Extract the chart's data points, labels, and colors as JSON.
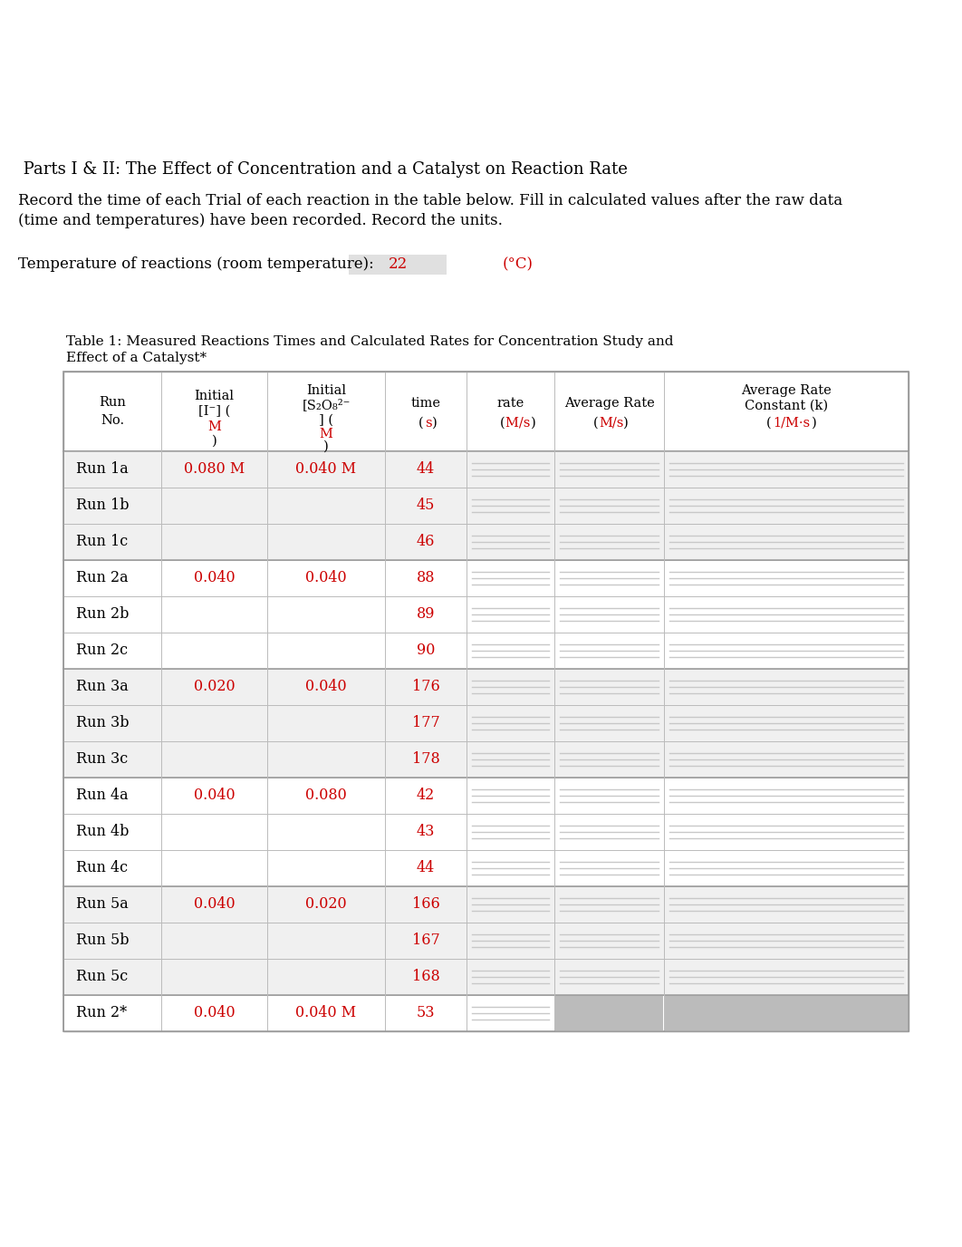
{
  "title_text": " Parts I & II: The Effect of Concentration and a Catalyst on Reaction Rate",
  "instruction_line1": "Record the time of each Trial of each reaction in the table below. Fill in calculated values after the raw data",
  "instruction_line2": "(time and temperatures) have been recorded. Record the units.",
  "temp_label": "Temperature of reactions (room temperature):",
  "temp_value": "22",
  "temp_unit": "(°C)",
  "table_caption_line1": "Table 1: Measured Reactions Times and Calculated Rates for Concentration Study and",
  "table_caption_line2": "Effect of a Catalyst*",
  "rows": [
    {
      "run": "Run 1a",
      "initial_i": "0.080 M",
      "initial_s": "0.040 M",
      "time": "44",
      "group_start": true,
      "last_in_group": false
    },
    {
      "run": "Run 1b",
      "initial_i": "",
      "initial_s": "",
      "time": "45",
      "group_start": false,
      "last_in_group": false
    },
    {
      "run": "Run 1c",
      "initial_i": "",
      "initial_s": "",
      "time": "46",
      "group_start": false,
      "last_in_group": true
    },
    {
      "run": "Run 2a",
      "initial_i": "0.040",
      "initial_s": "0.040",
      "time": "88",
      "group_start": true,
      "last_in_group": false
    },
    {
      "run": "Run 2b",
      "initial_i": "",
      "initial_s": "",
      "time": "89",
      "group_start": false,
      "last_in_group": false
    },
    {
      "run": "Run 2c",
      "initial_i": "",
      "initial_s": "",
      "time": "90",
      "group_start": false,
      "last_in_group": true
    },
    {
      "run": "Run 3a",
      "initial_i": "0.020",
      "initial_s": "0.040",
      "time": "176",
      "group_start": true,
      "last_in_group": false
    },
    {
      "run": "Run 3b",
      "initial_i": "",
      "initial_s": "",
      "time": "177",
      "group_start": false,
      "last_in_group": false
    },
    {
      "run": "Run 3c",
      "initial_i": "",
      "initial_s": "",
      "time": "178",
      "group_start": false,
      "last_in_group": true
    },
    {
      "run": "Run 4a",
      "initial_i": "0.040",
      "initial_s": "0.080",
      "time": "42",
      "group_start": true,
      "last_in_group": false
    },
    {
      "run": "Run 4b",
      "initial_i": "",
      "initial_s": "",
      "time": "43",
      "group_start": false,
      "last_in_group": false
    },
    {
      "run": "Run 4c",
      "initial_i": "",
      "initial_s": "",
      "time": "44",
      "group_start": false,
      "last_in_group": true
    },
    {
      "run": "Run 5a",
      "initial_i": "0.040",
      "initial_s": "0.020",
      "time": "166",
      "group_start": true,
      "last_in_group": false
    },
    {
      "run": "Run 5b",
      "initial_i": "",
      "initial_s": "",
      "time": "167",
      "group_start": false,
      "last_in_group": false
    },
    {
      "run": "Run 5c",
      "initial_i": "",
      "initial_s": "",
      "time": "168",
      "group_start": false,
      "last_in_group": true
    },
    {
      "run": "Run 2*",
      "initial_i": "0.040",
      "initial_s": "0.040 M",
      "time": "53",
      "group_start": true,
      "last_in_group": true,
      "gray_avg": true
    }
  ],
  "red_color": "#CC0000",
  "black_color": "#000000",
  "line_gray": "#C8C8C8",
  "table_border_color": "#999999",
  "background_color": "#FFFFFF"
}
